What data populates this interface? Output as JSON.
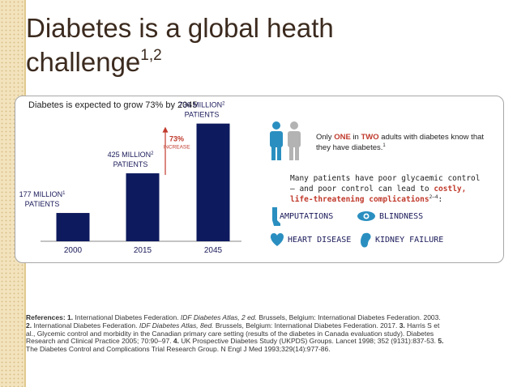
{
  "slide": {
    "title_main": "Diabetes is a global heath challenge",
    "title_sup": "1,2",
    "panel_label": "Diabetes is expected to grow 73% by 2045"
  },
  "chart_data": {
    "type": "bar",
    "categories": [
      "2000",
      "2015",
      "2045"
    ],
    "values": [
      177,
      425,
      736
    ],
    "unit": "MILLION",
    "data_labels": [
      {
        "line1": "177 MILLION",
        "sup": "1",
        "line2": "PATIENTS"
      },
      {
        "line1": "425 MILLION",
        "sup": "2",
        "line2": "PATIENTS"
      },
      {
        "line1": "736 MILLION",
        "sup": "2",
        "line2": "PATIENTS"
      }
    ],
    "annotation": {
      "value": "73%",
      "text": "INCREASE"
    },
    "ylim": [
      0,
      800
    ],
    "bar_color": "#0e1a5e",
    "accent_color": "#c0392b"
  },
  "info": {
    "awareness_pre": "Only ",
    "awareness_one": "ONE",
    "awareness_mid": " in ",
    "awareness_two": "TWO",
    "awareness_post": " adults with diabetes know that they have diabetes.",
    "awareness_sup": "1",
    "glycaemic_pre": "Many patients have poor glycaemic control – and poor control can lead to ",
    "glycaemic_accent": "costly, life-threatening complications",
    "glycaemic_sup": "2–4",
    "glycaemic_post": ":",
    "complications": [
      "AMPUTATIONS",
      "BLINDNESS",
      "HEART DISEASE",
      "KIDNEY FAILURE"
    ],
    "person_colors": {
      "aware": "#2a8fc0",
      "unaware": "#b3b3b3"
    },
    "icon_color": "#2a8fc0"
  },
  "references": {
    "label": "References:",
    "n1": "1.",
    "t1a": " International Diabetes Federation. ",
    "t1b": "IDF Diabetes Atlas, 2 ed.",
    "t1c": " Brussels, Belgium: International Diabetes Federation. 2003. ",
    "n2": "2.",
    "t2a": " International Diabetes Federation. ",
    "t2b": "IDF Diabetes Atlas, 8ed.",
    "t2c": " Brussels, Belgium: International Diabetes Federation. 2017. ",
    "n3": "3.",
    "t3": " Harris S et al., Glycemic control and morbidity in the Canadian primary care setting (results of the diabetes in Canada evaluation study). Diabetes Research and Clinical Practice 2005; 70:90–97. ",
    "n4": "4.",
    "t4": " UK Prospective Diabetes Study (UKPDS) Groups. Lancet 1998; 352 (9131):837-53. ",
    "n5": "5.",
    "t5": " The Diabetes Control and Complications Trial Research Group. N Engl J Med 1993;329(14):977-86."
  }
}
